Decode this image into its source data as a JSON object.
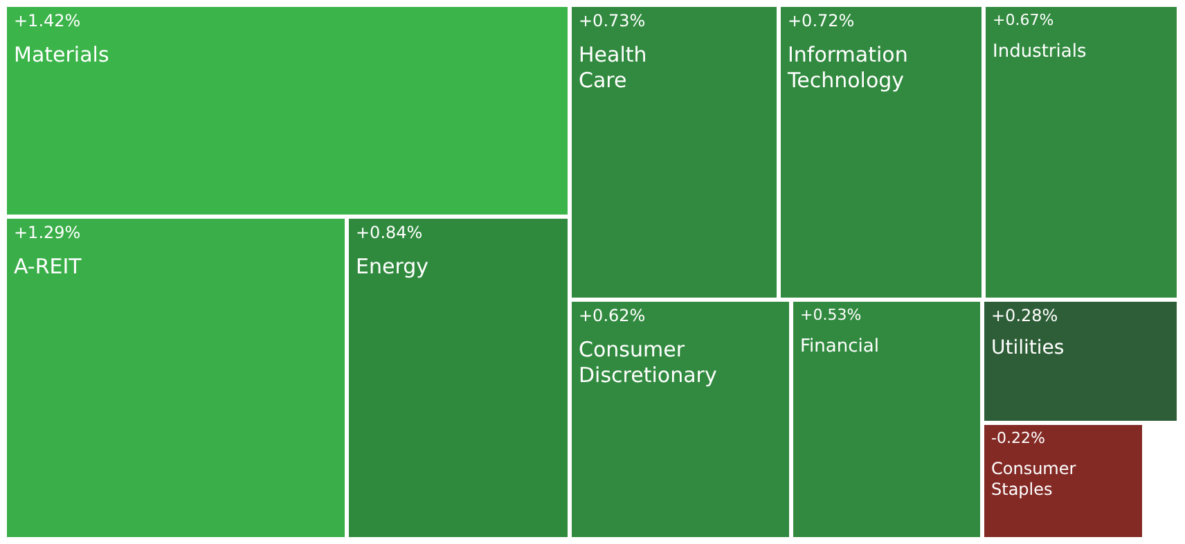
{
  "chart_data": {
    "type": "other",
    "categories": [
      "Materials",
      "A-REIT",
      "Energy",
      "Health Care",
      "Information Technology",
      "Industrials",
      "Consumer Discretionary",
      "Financial",
      "Utilities",
      "Consumer Staples"
    ],
    "values": [
      1.42,
      1.29,
      0.84,
      0.73,
      0.72,
      0.67,
      0.62,
      0.53,
      0.28,
      -0.22
    ],
    "value_labels": [
      "+1.42%",
      "+1.29%",
      "+0.84%",
      "+0.73%",
      "+0.72%",
      "+0.67%",
      "+0.62%",
      "+0.53%",
      "+0.28%",
      "-0.22%"
    ],
    "colors": [
      "#3bb44a",
      "#3aae48",
      "#2f8a3e",
      "#318a3f",
      "#318a3f",
      "#318a3f",
      "#318a3f",
      "#318a3f",
      "#2e5e37",
      "#832a25"
    ]
  }
}
